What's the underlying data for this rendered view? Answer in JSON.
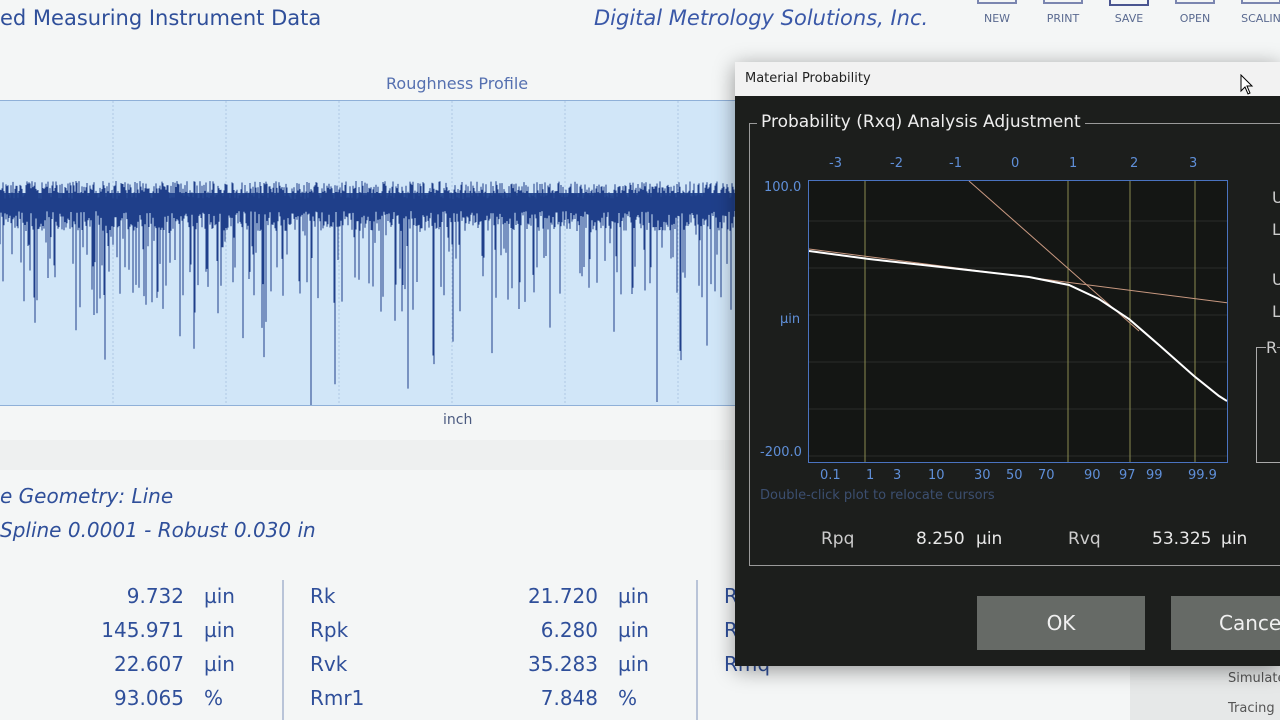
{
  "header": {
    "title": "ed Measuring Instrument Data",
    "company": "Digital Metrology Solutions, Inc."
  },
  "toolbar": [
    {
      "label": "NEW",
      "icon": "new-icon"
    },
    {
      "label": "PRINT",
      "icon": "print-icon"
    },
    {
      "label": "SAVE",
      "icon": "save-icon"
    },
    {
      "label": "OPEN",
      "icon": "open-icon"
    },
    {
      "label": "SCALIN",
      "icon": "scaling-icon"
    }
  ],
  "profile": {
    "title": "Roughness Profile",
    "xlabel": "inch",
    "fill": "#d1e6f8",
    "signal": "#1f3f8a"
  },
  "geometry": {
    "line1": "e Geometry: Line",
    "line2": "Spline 0.0001 - Robust 0.030 in"
  },
  "params": {
    "col1": [
      {
        "v": "9.732",
        "u": "µin"
      },
      {
        "v": "145.971",
        "u": "µin"
      },
      {
        "v": "22.607",
        "u": "µin"
      },
      {
        "v": "93.065",
        "u": "%"
      }
    ],
    "col2": [
      {
        "n": "Rk",
        "v": "21.720",
        "u": "µin"
      },
      {
        "n": "Rpk",
        "v": "6.280",
        "u": "µin"
      },
      {
        "n": "Rvk",
        "v": "35.283",
        "u": "µin"
      },
      {
        "n": "Rmr1",
        "v": "7.848",
        "u": "%"
      }
    ],
    "col3": [
      "R",
      "R",
      "Rmq"
    ]
  },
  "side": [
    "Simulate",
    "Tracing"
  ],
  "dialog": {
    "title": "Material Probability",
    "group": "Probability (Rxq) Analysis Adjustment",
    "plot": {
      "top_ticks": [
        "-3",
        "-2",
        "-1",
        "0",
        "1",
        "2",
        "3"
      ],
      "bottom_ticks": [
        "0.1",
        "1",
        "3",
        "10",
        "30",
        "50",
        "70",
        "90",
        "97",
        "99",
        "99.9"
      ],
      "y_max": "100.0",
      "y_min": "-200.0",
      "y_unit": "µin"
    },
    "hint": "Double-click plot to relocate cursors",
    "right_labels": [
      "U",
      "L",
      "U",
      "L",
      "R"
    ],
    "rpq": {
      "label": "Rpq",
      "value": "8.250",
      "unit": "µin"
    },
    "rvq": {
      "label": "Rvq",
      "value": "53.325",
      "unit": "µin"
    },
    "ok": "OK",
    "cancel": "Cancel"
  }
}
